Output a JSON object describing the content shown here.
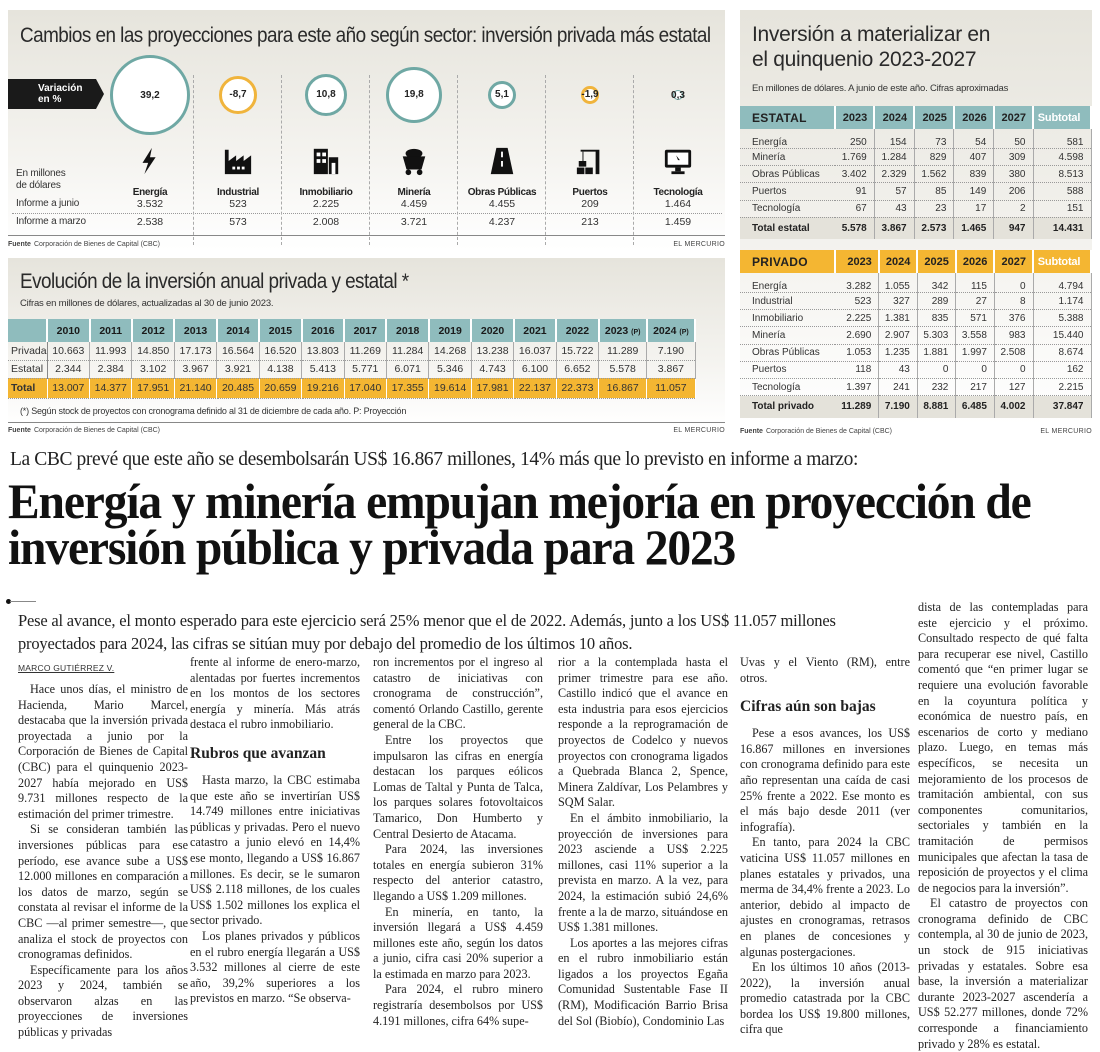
{
  "colors": {
    "teal": "#8fbcbd",
    "circle_positive": "#6fa8a4",
    "circle_negative": "#f0b43c",
    "orange": "#f4b632",
    "black": "#1a1a1a"
  },
  "sectors_panel": {
    "title": "Cambios en las proyecciones para este año según sector: inversión privada más estatal",
    "variation_label": "Variación en %",
    "units_label": "En millones de dólares",
    "row_labels": [
      "Informe a junio",
      "Informe a marzo"
    ],
    "sectors": [
      {
        "name": "Energía",
        "icon": "lightning-icon",
        "variation": "39,2",
        "variation_value": 39.2,
        "junio": "3.532",
        "marzo": "2.538"
      },
      {
        "name": "Industrial",
        "icon": "factory-icon",
        "variation": "-8,7",
        "variation_value": -8.7,
        "junio": "523",
        "marzo": "573"
      },
      {
        "name": "Inmobiliario",
        "icon": "building-icon",
        "variation": "10,8",
        "variation_value": 10.8,
        "junio": "2.225",
        "marzo": "2.008"
      },
      {
        "name": "Minería",
        "icon": "mine-cart-icon",
        "variation": "19,8",
        "variation_value": 19.8,
        "junio": "4.459",
        "marzo": "3.721"
      },
      {
        "name": "Obras Públicas",
        "icon": "road-icon",
        "variation": "5,1",
        "variation_value": 5.1,
        "junio": "4.455",
        "marzo": "4.237"
      },
      {
        "name": "Puertos",
        "icon": "crane-icon",
        "variation": "-1,9",
        "variation_value": -1.9,
        "junio": "209",
        "marzo": "213"
      },
      {
        "name": "Tecnología",
        "icon": "monitor-icon",
        "variation": "0,3",
        "variation_value": 0.3,
        "junio": "1.464",
        "marzo": "1.459"
      }
    ],
    "source_label": "Fuente",
    "source": "Corporación de Bienes de Capital (CBC)",
    "credit": "EL MERCURIO"
  },
  "evolution_panel": {
    "title": "Evolución de la inversión anual privada y estatal *",
    "subtitle": "Cifras en millones de dólares, actualizadas al 30 de junio 2023.",
    "years": [
      "2010",
      "2011",
      "2012",
      "2013",
      "2014",
      "2015",
      "2016",
      "2017",
      "2018",
      "2019",
      "2020",
      "2021",
      "2022",
      "2023",
      "2024"
    ],
    "projection_mark": "(P)",
    "rows": [
      {
        "label": "Privada",
        "values": [
          "10.663",
          "11.993",
          "14.850",
          "17.173",
          "16.564",
          "16.520",
          "13.803",
          "11.269",
          "11.284",
          "14.268",
          "13.238",
          "16.037",
          "15.722",
          "11.289",
          "7.190"
        ]
      },
      {
        "label": "Estatal",
        "values": [
          "2.344",
          "2.384",
          "3.102",
          "3.967",
          "3.921",
          "4.138",
          "5.413",
          "5.771",
          "6.071",
          "5.346",
          "4.743",
          "6.100",
          "6.652",
          "5.578",
          "3.867"
        ]
      },
      {
        "label": "Total",
        "values": [
          "13.007",
          "14.377",
          "17.951",
          "21.140",
          "20.485",
          "20.659",
          "19.216",
          "17.040",
          "17.355",
          "19.614",
          "17.981",
          "22.137",
          "22.373",
          "16.867",
          "11.057"
        ]
      }
    ],
    "footnote": "(*) Según stock de proyectos con cronograma definido al 31 de diciembre de cada año.   P: Proyección",
    "source_label": "Fuente",
    "source": "Corporación de Bienes de Capital (CBC)",
    "credit": "EL MERCURIO"
  },
  "quinquenio_panel": {
    "title_line1": "Inversión a materializar en",
    "title_line2": "el quinquenio 2023-2027",
    "subtitle": "En millones de dólares. A junio de este año. Cifras aproximadas",
    "years": [
      "2023",
      "2024",
      "2025",
      "2026",
      "2027"
    ],
    "subtotal_label": "Subtotal",
    "estatal": {
      "label": "ESTATAL",
      "rows": [
        {
          "label": "Energía",
          "values": [
            "250",
            "154",
            "73",
            "54",
            "50",
            "581"
          ]
        },
        {
          "label": "Minería",
          "values": [
            "1.769",
            "1.284",
            "829",
            "407",
            "309",
            "4.598"
          ]
        },
        {
          "label": "Obras Públicas",
          "values": [
            "3.402",
            "2.329",
            "1.562",
            "839",
            "380",
            "8.513"
          ]
        },
        {
          "label": "Puertos",
          "values": [
            "91",
            "57",
            "85",
            "149",
            "206",
            "588"
          ]
        },
        {
          "label": "Tecnología",
          "values": [
            "67",
            "43",
            "23",
            "17",
            "2",
            "151"
          ]
        }
      ],
      "total": {
        "label": "Total estatal",
        "values": [
          "5.578",
          "3.867",
          "2.573",
          "1.465",
          "947",
          "14.431"
        ]
      }
    },
    "privado": {
      "label": "PRIVADO",
      "rows": [
        {
          "label": "Energía",
          "values": [
            "3.282",
            "1.055",
            "342",
            "115",
            "0",
            "4.794"
          ]
        },
        {
          "label": "Industrial",
          "values": [
            "523",
            "327",
            "289",
            "27",
            "8",
            "1.174"
          ]
        },
        {
          "label": "Inmobiliario",
          "values": [
            "2.225",
            "1.381",
            "835",
            "571",
            "376",
            "5.388"
          ]
        },
        {
          "label": "Minería",
          "values": [
            "2.690",
            "2.907",
            "5.303",
            "3.558",
            "983",
            "15.440"
          ]
        },
        {
          "label": "Obras Públicas",
          "values": [
            "1.053",
            "1.235",
            "1.881",
            "1.997",
            "2.508",
            "8.674"
          ]
        },
        {
          "label": "Puertos",
          "values": [
            "118",
            "43",
            "0",
            "0",
            "0",
            "162"
          ]
        },
        {
          "label": "Tecnología",
          "values": [
            "1.397",
            "241",
            "232",
            "217",
            "127",
            "2.215"
          ]
        }
      ],
      "total": {
        "label": "Total privado",
        "values": [
          "11.289",
          "7.190",
          "8.881",
          "6.485",
          "4.002",
          "37.847"
        ]
      }
    },
    "source_label": "Fuente",
    "source": "Corporación de Bienes de Capital (CBC)",
    "credit": "EL MERCURIO"
  },
  "article": {
    "kicker": "La CBC prevé que este año se desembolsarán US$ 16.867 millones, 14% más que lo previsto en informe a marzo:",
    "headline": "Energía y minería empujan mejoría en proyección de inversión pública y privada para 2023",
    "deck": "Pese al avance, el monto esperado para este ejercicio será 25% menor que el de 2022. Además, junto a los US$ 11.057 millones proyectados para 2024, las cifras se sitúan muy por debajo del promedio de los últimos 10 años.",
    "byline": "MARCO GUTIÉRREZ V.",
    "columns": [
      [
        {
          "t": "p",
          "text": "Hace unos días, el ministro de Hacienda, Mario Marcel, destacaba que la inversión privada proyectada a junio por la Corporación de Bienes de Capital (CBC) para el quinquenio 2023-2027 había mejorado en US$ 9.731 millones respecto de la estimación del primer trimestre."
        },
        {
          "t": "p",
          "text": "Si se consideran también las inversiones públicas para ese período, ese avance sube a US$ 12.000 millones en comparación a los datos de marzo, según se constata al revisar el informe de la CBC —al primer semestre—, que analiza el stock de proyectos con cronogramas definidos."
        },
        {
          "t": "p",
          "text": "Específicamente para los años 2023 y 2024, también se observaron alzas en las proyecciones de inversiones públicas y privadas"
        }
      ],
      [
        {
          "t": "c",
          "text": "frente al informe de enero-marzo, alentadas por fuertes incrementos en los montos de los sectores energía y minería. Más atrás destaca el rubro inmobiliario."
        },
        {
          "t": "h",
          "text": "Rubros que avanzan"
        },
        {
          "t": "p",
          "text": "Hasta marzo, la CBC estimaba que este año se invertirían US$ 14.749 millones entre iniciativas públicas y privadas. Pero el nuevo catastro a junio elevó en 14,4% ese monto, llegando a US$ 16.867 millones. Es decir, se le sumaron US$ 2.118 millones, de los cuales US$ 1.502 millones los explica el sector privado."
        },
        {
          "t": "p",
          "text": "Los planes privados y públicos en el rubro energía llegarán a US$ 3.532 millones al cierre de este año, 39,2% superiores a los previstos en marzo. “Se observa-"
        }
      ],
      [
        {
          "t": "c",
          "text": "ron incrementos por el ingreso al catastro de iniciativas con cronograma de construcción”, comentó Orlando Castillo, gerente general de la CBC."
        },
        {
          "t": "p",
          "text": "Entre los proyectos que impulsaron las cifras en energía destacan los parques eólicos Lomas de Taltal y Punta de Talca, los parques solares fotovoltaicos Tamarico, Don Humberto y Central Desierto de Atacama."
        },
        {
          "t": "p",
          "text": "Para 2024, las inversiones totales en energía subieron 31% respecto del anterior catastro, llegando a US$ 1.209 millones."
        },
        {
          "t": "p",
          "text": "En minería, en tanto, la inversión llegará a US$ 4.459 millones este año, según los datos a junio, cifra casi 20% superior a la estimada en marzo para 2023."
        },
        {
          "t": "p",
          "text": "Para 2024, el rubro minero registraría desembolsos por US$ 4.191 millones, cifra 64% supe-"
        }
      ],
      [
        {
          "t": "c",
          "text": "rior a la contemplada hasta el primer trimestre para ese año. Castillo indicó que el avance en esta industria para esos ejercicios responde a la reprogramación de proyectos de Codelco y nuevos proyectos con cronograma ligados a Quebrada Blanca 2, Spence, Minera Zaldívar, Los Pelambres y SQM Salar."
        },
        {
          "t": "p",
          "text": "En el ámbito inmobiliario, la proyección de inversiones para 2023 asciende a US$ 2.225 millones, casi 11% superior a la prevista en marzo. A la vez, para 2024, la estimación subió 24,6% frente a la de marzo, situándose en US$ 1.381 millones."
        },
        {
          "t": "p",
          "text": "Los aportes a las mejores cifras en el rubro inmobiliario están ligados a los proyectos Egaña Comunidad Sustentable Fase II (RM), Modificación Barrio Brisa del Sol (Biobío), Condominio Las"
        }
      ],
      [
        {
          "t": "c",
          "text": "Uvas y el Viento (RM), entre otros."
        },
        {
          "t": "h",
          "text": "Cifras aún son bajas"
        },
        {
          "t": "p",
          "text": "Pese a esos avances, los US$ 16.867 millones en inversiones con cronograma definido para este año representan una caída de casi 25% frente a 2022. Ese monto es el más bajo desde 2011 (ver infografía)."
        },
        {
          "t": "p",
          "text": "En tanto, para 2024 la CBC vaticina US$ 11.057 millones en planes estatales y privados, una merma de 34,4% frente a 2023. Lo anterior, debido al impacto de ajustes en cronogramas, retrasos en planes de concesiones y algunas postergaciones."
        },
        {
          "t": "p",
          "text": "En los últimos 10 años (2013-2022), la inversión anual promedio catastrada por la CBC bordea los US$ 19.800 millones, cifra que"
        }
      ],
      [
        {
          "t": "c",
          "text": "dista de las contempladas para este ejercicio y el próximo. Consultado respecto de qué falta para recuperar ese nivel, Castillo comentó que “en primer lugar se requiere una evolución favorable en la coyuntura política y económica de nuestro país, en escenarios de corto y mediano plazo. Luego, en temas más específicos, se necesita un mejoramiento de los procesos de tramitación ambiental, con sus componentes comunitarios, sectoriales y también en la tramitación de permisos municipales que afectan la tasa de reposición de proyectos y el clima de negocios para la inversión”."
        },
        {
          "t": "p",
          "text": "El catastro de proyectos con cronograma definido de CBC contempla, al 30 de junio de 2023, un stock de 915 iniciativas privadas y estatales. Sobre esa base, la inversión a materializar durante 2023-2027 ascendería a US$ 52.277 millones, donde 72% corresponde a financiamiento privado y 28% es estatal."
        }
      ]
    ]
  }
}
